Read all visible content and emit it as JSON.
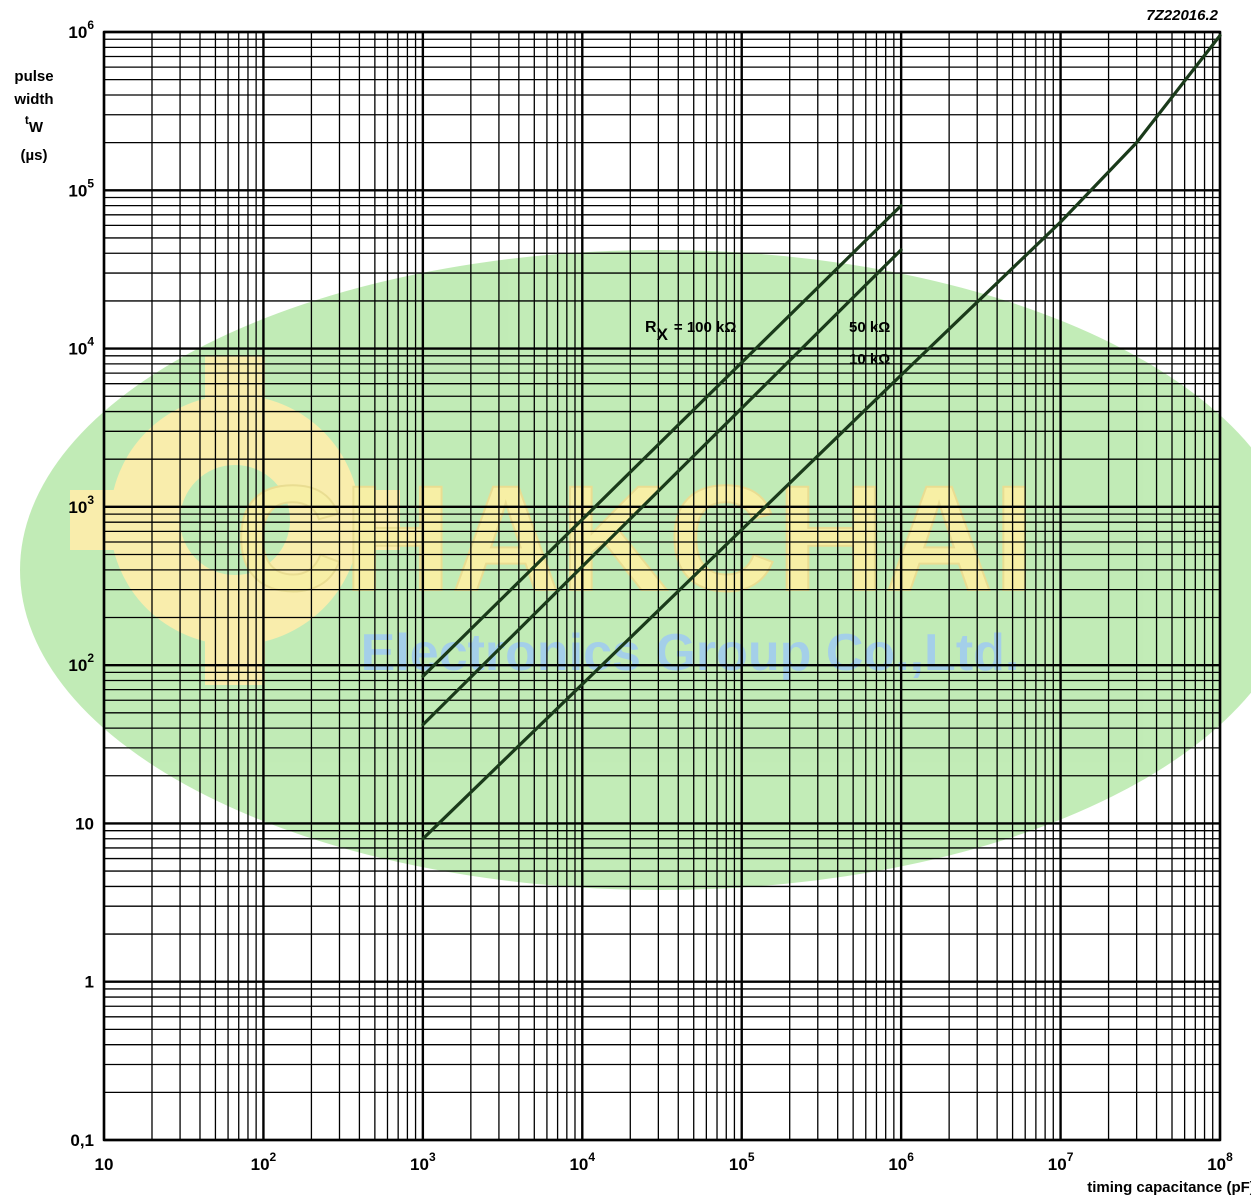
{
  "figure_code": "7Z22016.2",
  "chart_data": {
    "type": "line",
    "title": "",
    "xlabel": "timing capacitance (pF)",
    "ylabel_lines": [
      "pulse",
      "width",
      "t",
      "W",
      "(µs)"
    ],
    "x_scale": "log",
    "y_scale": "log",
    "xlim": [
      10,
      100000000
    ],
    "ylim": [
      0.1,
      1000000
    ],
    "x_tick_labels": [
      {
        "base": "10",
        "exp": ""
      },
      {
        "base": "10",
        "exp": "2"
      },
      {
        "base": "10",
        "exp": "3"
      },
      {
        "base": "10",
        "exp": "4"
      },
      {
        "base": "10",
        "exp": "5"
      },
      {
        "base": "10",
        "exp": "6"
      },
      {
        "base": "10",
        "exp": "7"
      },
      {
        "base": "10",
        "exp": "8"
      }
    ],
    "y_tick_labels": [
      {
        "base": "0,1",
        "exp": ""
      },
      {
        "base": "1",
        "exp": ""
      },
      {
        "base": "10",
        "exp": ""
      },
      {
        "base": "10",
        "exp": "2"
      },
      {
        "base": "10",
        "exp": "3"
      },
      {
        "base": "10",
        "exp": "4"
      },
      {
        "base": "10",
        "exp": "5"
      },
      {
        "base": "10",
        "exp": "6"
      }
    ],
    "grid": true,
    "series": [
      {
        "name": "R",
        "name_sub": "X",
        "name_suffix": "= 100 kΩ",
        "x": [
          1000,
          1000000
        ],
        "y": [
          85,
          80000
        ]
      },
      {
        "name": "50 kΩ",
        "x": [
          1000,
          1000000
        ],
        "y": [
          42,
          42000
        ]
      },
      {
        "name": "10 kΩ",
        "x": [
          1000,
          1000000,
          10000000,
          30000000,
          100000000
        ],
        "y": [
          8,
          6800,
          63000,
          200000,
          950000
        ]
      }
    ]
  },
  "watermark": {
    "title": "CHAKCHAI",
    "subtitle": "Electronics Group Co.,Ltd."
  }
}
